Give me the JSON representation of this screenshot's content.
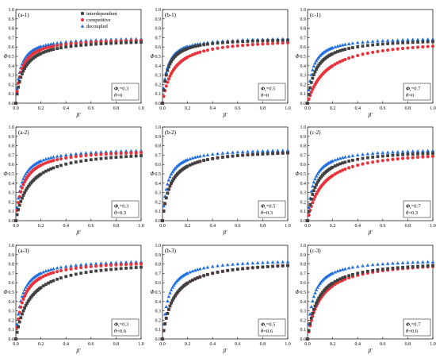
{
  "figure": {
    "xlabel": "β′",
    "ylabel": "Φ",
    "colors": {
      "interdependent": "#404040",
      "competitive": "#e8333b",
      "decoupled": "#1f6fe0"
    },
    "legend": [
      {
        "key": "interdependent",
        "label": "interdependent",
        "marker": "square"
      },
      {
        "key": "competitive",
        "label": "competitive",
        "marker": "circle"
      },
      {
        "key": "decoupled",
        "label": "decoupled",
        "marker": "triangle"
      }
    ]
  },
  "chart_data": [
    {
      "type": "scatter",
      "label": "(a-1)",
      "annotation_phi": "=0.3",
      "annotation_theta": "=0",
      "xlim": [
        0,
        1
      ],
      "ylim": [
        0,
        1
      ],
      "x_ticks": [
        "0.0",
        "0.2",
        "0.4",
        "0.6",
        "0.8",
        "1.0"
      ],
      "y_ticks": [
        "0.0",
        "0.1",
        "0.2",
        "0.3",
        "0.4",
        "0.5",
        "0.6",
        "0.7",
        "0.8",
        "0.9",
        "1.0"
      ],
      "series": [
        {
          "key": "interdependent",
          "name": "interdependent",
          "plateau": 0.69,
          "rate": 0.06
        },
        {
          "key": "competitive",
          "name": "competitive",
          "plateau": 0.7,
          "rate": 0.045
        },
        {
          "key": "decoupled",
          "name": "decoupled",
          "plateau": 0.71,
          "rate": 0.035
        }
      ]
    },
    {
      "type": "scatter",
      "label": "(b-1)",
      "annotation_phi": "=0.5",
      "annotation_theta": "=0",
      "xlim": [
        0,
        1
      ],
      "ylim": [
        0,
        1
      ],
      "x_ticks": [
        "0.0",
        "0.2",
        "0.4",
        "0.6",
        "0.8",
        "1.0"
      ],
      "y_ticks": [
        "0.0",
        "0.1",
        "0.2",
        "0.3",
        "0.4",
        "0.5",
        "0.6",
        "0.7",
        "0.8",
        "0.9",
        "1.0"
      ],
      "series": [
        {
          "key": "interdependent",
          "name": "interdependent",
          "plateau": 0.7,
          "rate": 0.04
        },
        {
          "key": "competitive",
          "name": "competitive",
          "plateau": 0.7,
          "rate": 0.085
        },
        {
          "key": "decoupled",
          "name": "decoupled",
          "plateau": 0.71,
          "rate": 0.035
        }
      ]
    },
    {
      "type": "scatter",
      "label": "(c-1)",
      "annotation_phi": "=0.7",
      "annotation_theta": "=0",
      "xlim": [
        0,
        1
      ],
      "ylim": [
        0,
        1
      ],
      "x_ticks": [
        "0.0",
        "0.2",
        "0.4",
        "0.6",
        "0.8",
        "1.0"
      ],
      "y_ticks": [
        "0.0",
        "0.1",
        "0.2",
        "0.3",
        "0.4",
        "0.5",
        "0.6",
        "0.7",
        "0.8",
        "0.9",
        "1.0"
      ],
      "series": [
        {
          "key": "interdependent",
          "name": "interdependent",
          "plateau": 0.7,
          "rate": 0.065
        },
        {
          "key": "competitive",
          "name": "competitive",
          "plateau": 0.7,
          "rate": 0.15
        },
        {
          "key": "decoupled",
          "name": "decoupled",
          "plateau": 0.71,
          "rate": 0.04
        }
      ]
    },
    {
      "type": "scatter",
      "label": "(a-2)",
      "annotation_phi": "=0.3",
      "annotation_theta": "=0.3",
      "xlim": [
        0,
        1
      ],
      "ylim": [
        0,
        1
      ],
      "x_ticks": [
        "0.0",
        "0.2",
        "0.4",
        "0.6",
        "0.8",
        "1.0"
      ],
      "y_ticks": [
        "0.0",
        "0.1",
        "0.2",
        "0.3",
        "0.4",
        "0.5",
        "0.6",
        "0.7",
        "0.8",
        "0.9",
        "1.0"
      ],
      "series": [
        {
          "key": "interdependent",
          "name": "interdependent",
          "plateau": 0.77,
          "rate": 0.11
        },
        {
          "key": "competitive",
          "name": "competitive",
          "plateau": 0.77,
          "rate": 0.06
        },
        {
          "key": "decoupled",
          "name": "decoupled",
          "plateau": 0.78,
          "rate": 0.045
        }
      ]
    },
    {
      "type": "scatter",
      "label": "(b-2)",
      "annotation_phi": "=0.5",
      "annotation_theta": "=0.3",
      "xlim": [
        0,
        1
      ],
      "ylim": [
        0,
        1
      ],
      "x_ticks": [
        "0.0",
        "0.2",
        "0.4",
        "0.6",
        "0.8",
        "1.0"
      ],
      "y_ticks": [
        "0.0",
        "0.1",
        "0.2",
        "0.3",
        "0.4",
        "0.5",
        "0.6",
        "0.7",
        "0.8",
        "0.9",
        "1.0"
      ],
      "series": [
        {
          "key": "interdependent",
          "name": "interdependent",
          "plateau": 0.77,
          "rate": 0.065
        },
        {
          "key": "competitive",
          "name": "competitive",
          "plateau": 0.77,
          "rate": 0.065
        },
        {
          "key": "decoupled",
          "name": "decoupled",
          "plateau": 0.78,
          "rate": 0.04
        }
      ]
    },
    {
      "type": "scatter",
      "label": "(c-2)",
      "annotation_phi": "=0.7",
      "annotation_theta": "=0.3",
      "xlim": [
        0,
        1
      ],
      "ylim": [
        0,
        1
      ],
      "x_ticks": [
        "0.0",
        "0.2",
        "0.4",
        "0.6",
        "0.8",
        "1.0"
      ],
      "y_ticks": [
        "0.0",
        "0.1",
        "0.2",
        "0.3",
        "0.4",
        "0.5",
        "0.6",
        "0.7",
        "0.8",
        "0.9",
        "1.0"
      ],
      "series": [
        {
          "key": "interdependent",
          "name": "interdependent",
          "plateau": 0.77,
          "rate": 0.07
        },
        {
          "key": "competitive",
          "name": "competitive",
          "plateau": 0.77,
          "rate": 0.12
        },
        {
          "key": "decoupled",
          "name": "decoupled",
          "plateau": 0.78,
          "rate": 0.045
        }
      ]
    },
    {
      "type": "scatter",
      "label": "(a-3)",
      "annotation_phi": "=0.3",
      "annotation_theta": "=0.6",
      "xlim": [
        0,
        1
      ],
      "ylim": [
        0,
        1
      ],
      "x_ticks": [
        "0.0",
        "0.2",
        "0.4",
        "0.6",
        "0.8",
        "1.0"
      ],
      "y_ticks": [
        "0.0",
        "0.1",
        "0.2",
        "0.3",
        "0.4",
        "0.5",
        "0.6",
        "0.7",
        "0.8",
        "0.9",
        "1.0"
      ],
      "series": [
        {
          "key": "interdependent",
          "name": "interdependent",
          "plateau": 0.85,
          "rate": 0.11
        },
        {
          "key": "competitive",
          "name": "competitive",
          "plateau": 0.85,
          "rate": 0.06
        },
        {
          "key": "decoupled",
          "name": "decoupled",
          "plateau": 0.86,
          "rate": 0.045
        }
      ]
    },
    {
      "type": "scatter",
      "label": "(b-3)",
      "annotation_phi": "=0.5",
      "annotation_theta": "=0.6",
      "xlim": [
        0,
        1
      ],
      "ylim": [
        0,
        1
      ],
      "x_ticks": [
        "0.0",
        "0.2",
        "0.4",
        "0.6",
        "0.8",
        "1.0"
      ],
      "y_ticks": [
        "0.0",
        "0.1",
        "0.2",
        "0.3",
        "0.4",
        "0.5",
        "0.6",
        "0.7",
        "0.8",
        "0.9",
        "1.0"
      ],
      "series": [
        {
          "key": "interdependent",
          "name": "interdependent",
          "plateau": 0.85,
          "rate": 0.085
        },
        {
          "key": "competitive",
          "name": "competitive",
          "plateau": 0.85,
          "rate": 0.085
        },
        {
          "key": "decoupled",
          "name": "decoupled",
          "plateau": 0.86,
          "rate": 0.045
        }
      ]
    },
    {
      "type": "scatter",
      "label": "(c-3)",
      "annotation_phi": "=0.7",
      "annotation_theta": "=0.6",
      "xlim": [
        0,
        1
      ],
      "ylim": [
        0,
        1
      ],
      "x_ticks": [
        "0.0",
        "0.2",
        "0.4",
        "0.6",
        "0.8",
        "1.0"
      ],
      "y_ticks": [
        "0.0",
        "0.1",
        "0.2",
        "0.3",
        "0.4",
        "0.5",
        "0.6",
        "0.7",
        "0.8",
        "0.9",
        "1.0"
      ],
      "series": [
        {
          "key": "interdependent",
          "name": "interdependent",
          "plateau": 0.85,
          "rate": 0.085
        },
        {
          "key": "competitive",
          "name": "competitive",
          "plateau": 0.85,
          "rate": 0.1
        },
        {
          "key": "decoupled",
          "name": "decoupled",
          "plateau": 0.86,
          "rate": 0.045
        }
      ]
    }
  ]
}
